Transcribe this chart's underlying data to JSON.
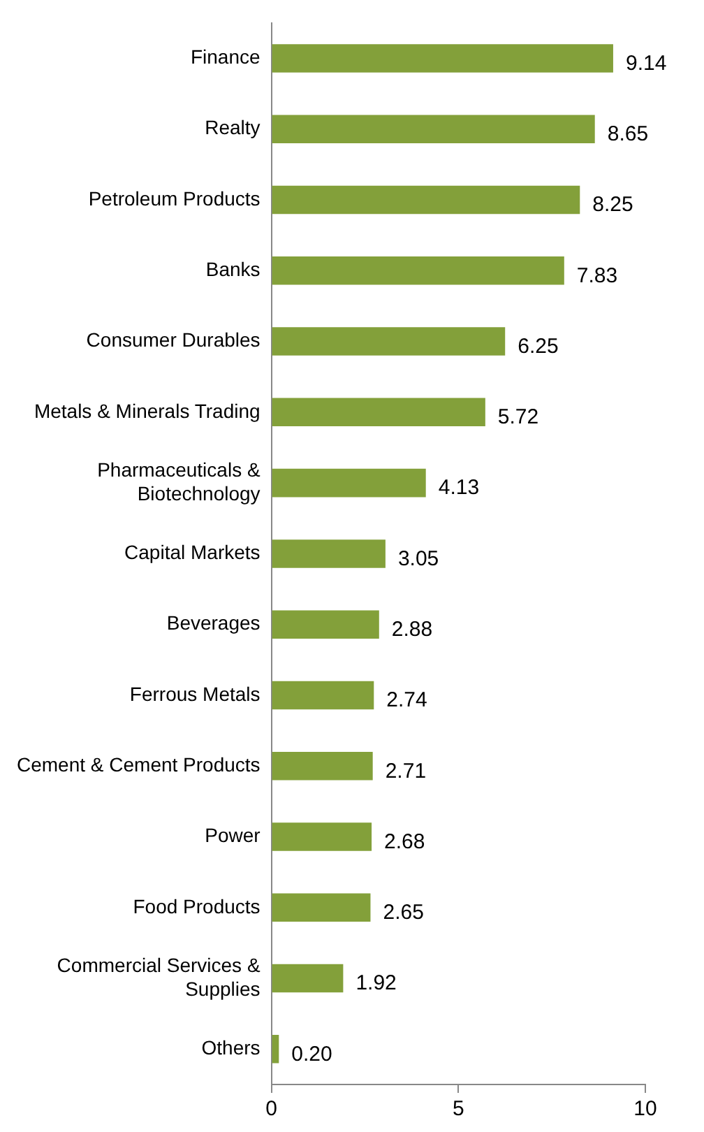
{
  "chart_data": {
    "type": "bar",
    "orientation": "horizontal",
    "categories": [
      "Finance",
      "Realty",
      "Petroleum Products",
      "Banks",
      "Consumer Durables",
      "Metals & Minerals Trading",
      "Pharmaceuticals & Biotechnology",
      "Capital Markets",
      "Beverages",
      "Ferrous Metals",
      "Cement & Cement Products",
      "Power",
      "Food Products",
      "Commercial Services & Supplies",
      "Others"
    ],
    "values": [
      9.14,
      8.65,
      8.25,
      7.83,
      6.25,
      5.72,
      4.13,
      3.05,
      2.88,
      2.74,
      2.71,
      2.68,
      2.65,
      1.92,
      0.2
    ],
    "value_labels": [
      "9.14",
      "8.65",
      "8.25",
      "7.83",
      "6.25",
      "5.72",
      "4.13",
      "3.05",
      "2.88",
      "2.74",
      "2.71",
      "2.68",
      "2.65",
      "1.92",
      "0.20"
    ],
    "color": "#83a03a",
    "xlim": [
      0,
      10
    ],
    "xticks": [
      0,
      5,
      10
    ],
    "grid": false,
    "legend": false
  }
}
